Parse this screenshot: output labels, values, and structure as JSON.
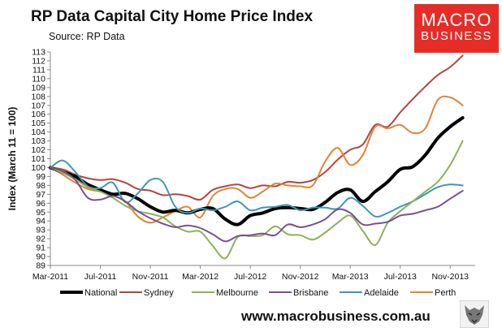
{
  "header": {
    "title": "RP Data Capital City Home Price Index",
    "source": "Source: RP Data"
  },
  "logo": {
    "line1": "MACRO",
    "line2": "BUSINESS",
    "color": "#e62c26"
  },
  "footer": {
    "url": "www.macrobusiness.com.au"
  },
  "wolf_icon": "wolf-head-icon",
  "chart_data": {
    "type": "line",
    "title": "RP Data Capital City Home Price Index",
    "subtitle": "Source: RP Data",
    "ylabel": "Index (March 11 = 100)",
    "xlabel": "",
    "ylim": [
      89,
      113
    ],
    "y_ticks": [
      89,
      90,
      91,
      92,
      93,
      94,
      95,
      96,
      97,
      98,
      99,
      100,
      101,
      102,
      103,
      104,
      105,
      106,
      107,
      108,
      109,
      110,
      111,
      112,
      113
    ],
    "x_ticks": [
      "Mar-2011",
      "Jul-2011",
      "Nov-2011",
      "Mar-2012",
      "Jul-2012",
      "Nov-2012",
      "Mar-2013",
      "Jul-2013",
      "Nov-2013"
    ],
    "x_range_months": [
      0,
      34
    ],
    "grid": false,
    "legend_position": "bottom",
    "series": [
      {
        "name": "Sydney",
        "color": "#b5443f",
        "width": 2,
        "x": [
          0,
          1,
          2,
          3,
          4,
          5,
          6,
          7,
          8,
          9,
          10,
          11,
          12,
          13,
          14,
          15,
          16,
          17,
          18,
          19,
          20,
          21,
          22,
          23,
          24,
          25,
          26,
          27,
          28,
          29,
          30,
          31,
          32,
          33
        ],
        "values": [
          100,
          99.8,
          99.2,
          98.8,
          98.6,
          98.7,
          98.3,
          97.6,
          97.4,
          96.9,
          97.0,
          96.8,
          96.4,
          97.5,
          97.9,
          98.1,
          97.7,
          98.0,
          97.9,
          98.4,
          98.3,
          98.6,
          99.5,
          100.9,
          102.0,
          102.6,
          104.8,
          104.6,
          106.2,
          107.7,
          109.1,
          110.4,
          111.3,
          112.6
        ]
      },
      {
        "name": "Perth",
        "color": "#e08433",
        "width": 2,
        "x": [
          0,
          1,
          2,
          3,
          4,
          5,
          6,
          7,
          8,
          9,
          10,
          11,
          12,
          13,
          14,
          15,
          16,
          17,
          18,
          19,
          20,
          21,
          22,
          23,
          24,
          25,
          26,
          27,
          28,
          29,
          30,
          31,
          32,
          33
        ],
        "values": [
          100,
          99.2,
          98.3,
          97.6,
          97.3,
          96.9,
          96.2,
          94.5,
          93.8,
          94.4,
          95.1,
          95.6,
          94.4,
          96.8,
          97.6,
          97.6,
          96.6,
          97.3,
          98.2,
          98.0,
          97.9,
          98.0,
          100.7,
          102.2,
          100.3,
          101.4,
          104.6,
          104.4,
          104.8,
          103.9,
          104.4,
          107.6,
          107.9,
          107.0
        ]
      },
      {
        "name": "National",
        "color": "#000000",
        "width": 4,
        "x": [
          0,
          1,
          2,
          3,
          4,
          5,
          6,
          7,
          8,
          9,
          10,
          11,
          12,
          13,
          14,
          15,
          16,
          17,
          18,
          19,
          20,
          21,
          22,
          23,
          24,
          25,
          26,
          27,
          28,
          29,
          30,
          31,
          32,
          33
        ],
        "values": [
          100,
          99.5,
          99.0,
          98.1,
          97.5,
          97.0,
          97.1,
          96.5,
          95.6,
          95.0,
          95.2,
          94.9,
          95.3,
          95.4,
          94.2,
          93.6,
          94.6,
          94.9,
          95.4,
          95.5,
          95.4,
          95.3,
          96.1,
          97.2,
          97.5,
          96.2,
          97.3,
          98.4,
          99.8,
          100.1,
          101.4,
          103.3,
          104.6,
          105.6
        ]
      },
      {
        "name": "Adelaide",
        "color": "#3d98b3",
        "width": 2,
        "x": [
          0,
          1,
          2,
          3,
          4,
          5,
          6,
          7,
          8,
          9,
          10,
          11,
          12,
          13,
          14,
          15,
          16,
          17,
          18,
          19,
          20,
          21,
          22,
          23,
          24,
          25,
          26,
          27,
          28,
          29,
          30,
          31,
          32,
          33
        ],
        "values": [
          100,
          100.8,
          99.5,
          97.9,
          97.7,
          98.3,
          96.1,
          97.1,
          98.6,
          98.4,
          95.6,
          94.9,
          95.4,
          95.2,
          95.6,
          96.2,
          95.2,
          95.5,
          95.6,
          95.8,
          95.2,
          95.5,
          95.5,
          95.4,
          96.6,
          95.7,
          94.5,
          94.9,
          95.6,
          96.2,
          97.0,
          97.8,
          98.1,
          98.0
        ]
      },
      {
        "name": "Melbourne",
        "color": "#8cb15b",
        "width": 2,
        "x": [
          0,
          1,
          2,
          3,
          4,
          5,
          6,
          7,
          8,
          9,
          10,
          11,
          12,
          13,
          14,
          15,
          16,
          17,
          18,
          19,
          20,
          21,
          22,
          23,
          24,
          25,
          26,
          27,
          28,
          29,
          30,
          31,
          32,
          33
        ],
        "values": [
          100,
          99.4,
          98.7,
          97.8,
          97.3,
          96.6,
          95.7,
          95.1,
          94.8,
          94.4,
          93.4,
          92.8,
          92.8,
          91.2,
          89.8,
          92.2,
          92.3,
          92.4,
          93.4,
          92.5,
          92.4,
          91.9,
          92.7,
          93.8,
          94.6,
          92.9,
          91.3,
          93.8,
          95.1,
          96.2,
          97.3,
          98.4,
          100.3,
          103.0
        ]
      },
      {
        "name": "Brisbane",
        "color": "#7a4f92",
        "width": 2,
        "x": [
          0,
          1,
          2,
          3,
          4,
          5,
          6,
          7,
          8,
          9,
          10,
          11,
          12,
          13,
          14,
          15,
          16,
          17,
          18,
          19,
          20,
          21,
          22,
          23,
          24,
          25,
          26,
          27,
          28,
          29,
          30,
          31,
          32,
          33
        ],
        "values": [
          100,
          99.6,
          98.6,
          96.6,
          96.4,
          96.8,
          96.2,
          95.1,
          94.3,
          93.7,
          93.3,
          93.5,
          93.2,
          92.5,
          91.7,
          92.3,
          92.4,
          92.6,
          92.4,
          93.6,
          93.3,
          93.6,
          94.2,
          95.3,
          94.9,
          93.6,
          93.7,
          93.9,
          94.6,
          94.8,
          95.2,
          95.6,
          96.5,
          97.4
        ]
      }
    ],
    "legend_order": [
      "National",
      "Sydney",
      "Melbourne",
      "Brisbane",
      "Adelaide",
      "Perth"
    ]
  }
}
